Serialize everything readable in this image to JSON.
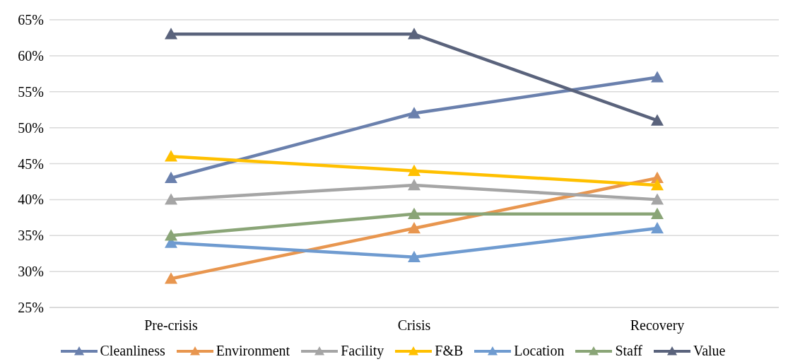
{
  "chart_data": {
    "type": "line",
    "categories": [
      "Pre-crisis",
      "Crisis",
      "Recovery"
    ],
    "series": [
      {
        "name": "Cleanliness",
        "color": "#6a80ad",
        "values": [
          43,
          52,
          57
        ]
      },
      {
        "name": "Environment",
        "color": "#e8964f",
        "values": [
          29,
          36,
          43
        ]
      },
      {
        "name": "Facility",
        "color": "#a5a5a5",
        "values": [
          40,
          42,
          40
        ]
      },
      {
        "name": "F&B",
        "color": "#ffc000",
        "values": [
          46,
          44,
          42
        ]
      },
      {
        "name": "Location",
        "color": "#6f9bd0",
        "values": [
          34,
          32,
          36
        ]
      },
      {
        "name": "Staff",
        "color": "#8aa577",
        "values": [
          35,
          38,
          38
        ]
      },
      {
        "name": "Value",
        "color": "#5a637c",
        "values": [
          63,
          63,
          51
        ]
      }
    ],
    "ylim": [
      25,
      65
    ],
    "yticks": [
      {
        "value": 25,
        "label": "25%"
      },
      {
        "value": 30,
        "label": "30%"
      },
      {
        "value": 35,
        "label": "35%"
      },
      {
        "value": 40,
        "label": "40%"
      },
      {
        "value": 45,
        "label": "45%"
      },
      {
        "value": 50,
        "label": "50%"
      },
      {
        "value": 55,
        "label": "55%"
      },
      {
        "value": 60,
        "label": "60%"
      },
      {
        "value": 65,
        "label": "65%"
      }
    ],
    "grid": "y",
    "legend": "bottom",
    "marker": "triangle",
    "line_style": "solid"
  }
}
